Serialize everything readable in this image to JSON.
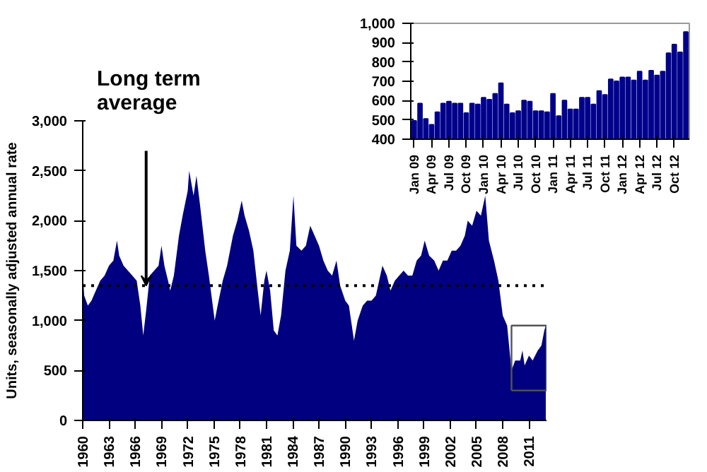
{
  "chart_data": [
    {
      "type": "area",
      "ylabel": "Units, seasonally adjusted annual rate",
      "x": [
        "1960-01",
        "1960-03",
        "1960-08",
        "1961-01",
        "1961-07",
        "1962-01",
        "1962-07",
        "1963-01",
        "1963-07",
        "1963-12",
        "1964-03",
        "1964-09",
        "1965-03",
        "1965-09",
        "1966-03",
        "1966-08",
        "1966-12",
        "1967-04",
        "1967-09",
        "1968-03",
        "1968-09",
        "1969-01",
        "1969-05",
        "1969-10",
        "1970-01",
        "1970-06",
        "1971-01",
        "1971-06",
        "1972-01",
        "1972-03",
        "1972-09",
        "1973-01",
        "1973-06",
        "1974-01",
        "1974-06",
        "1975-02",
        "1975-06",
        "1976-01",
        "1976-07",
        "1977-03",
        "1977-09",
        "1978-03",
        "1978-07",
        "1979-01",
        "1979-07",
        "1980-01",
        "1980-05",
        "1980-10",
        "1981-01",
        "1981-06",
        "1981-11",
        "1982-04",
        "1982-09",
        "1983-03",
        "1983-09",
        "1984-02",
        "1984-06",
        "1985-01",
        "1985-07",
        "1986-01",
        "1986-07",
        "1987-01",
        "1987-07",
        "1988-01",
        "1988-07",
        "1989-01",
        "1989-06",
        "1990-01",
        "1990-06",
        "1991-01",
        "1991-06",
        "1992-01",
        "1992-07",
        "1993-01",
        "1993-07",
        "1994-04",
        "1994-10",
        "1995-03",
        "1995-09",
        "1996-03",
        "1996-09",
        "1997-03",
        "1997-09",
        "1998-03",
        "1998-09",
        "1999-02",
        "1999-08",
        "2000-03",
        "2000-09",
        "2001-03",
        "2001-09",
        "2002-03",
        "2002-09",
        "2003-03",
        "2003-09",
        "2004-01",
        "2004-07",
        "2005-01",
        "2005-07",
        "2006-01",
        "2006-06",
        "2007-01",
        "2007-07",
        "2008-01",
        "2008-07",
        "2009-01",
        "2009-06",
        "2010-01",
        "2010-04",
        "2010-07",
        "2011-01",
        "2011-06",
        "2012-01",
        "2012-06",
        "2012-10",
        "2012-12"
      ],
      "series": [
        {
          "color": "#000080",
          "values": [
            1500,
            1250,
            1150,
            1200,
            1300,
            1400,
            1450,
            1550,
            1600,
            1800,
            1650,
            1550,
            1500,
            1450,
            1400,
            1150,
            850,
            1100,
            1450,
            1500,
            1550,
            1750,
            1550,
            1400,
            1300,
            1450,
            1850,
            2050,
            2300,
            2500,
            2250,
            2450,
            2150,
            1700,
            1450,
            1000,
            1150,
            1400,
            1550,
            1850,
            2000,
            2200,
            2050,
            1900,
            1700,
            1300,
            1050,
            1400,
            1500,
            1300,
            900,
            850,
            1050,
            1500,
            1700,
            2250,
            1750,
            1700,
            1750,
            1950,
            1850,
            1750,
            1600,
            1500,
            1450,
            1600,
            1350,
            1200,
            1150,
            800,
            1000,
            1150,
            1200,
            1200,
            1250,
            1550,
            1450,
            1300,
            1400,
            1450,
            1500,
            1450,
            1450,
            1600,
            1650,
            1800,
            1650,
            1600,
            1500,
            1600,
            1600,
            1700,
            1700,
            1750,
            1850,
            2000,
            1950,
            2100,
            2050,
            2250,
            1800,
            1600,
            1400,
            1050,
            950,
            500,
            600,
            600,
            700,
            550,
            650,
            600,
            700,
            750,
            900,
            950
          ]
        }
      ],
      "xlim": [
        "1960-01",
        "2013-01"
      ],
      "xticks": [
        {
          "value": "1960",
          "label": "1960"
        },
        {
          "value": "1963",
          "label": "1963"
        },
        {
          "value": "1966",
          "label": "1966"
        },
        {
          "value": "1969",
          "label": "1969"
        },
        {
          "value": "1972",
          "label": "1972"
        },
        {
          "value": "1975",
          "label": "1975"
        },
        {
          "value": "1978",
          "label": "1978"
        },
        {
          "value": "1981",
          "label": "1981"
        },
        {
          "value": "1984",
          "label": "1984"
        },
        {
          "value": "1987",
          "label": "1987"
        },
        {
          "value": "1990",
          "label": "1990"
        },
        {
          "value": "1993",
          "label": "1993"
        },
        {
          "value": "1996",
          "label": "1996"
        },
        {
          "value": "1999",
          "label": "1999"
        },
        {
          "value": "2002",
          "label": "2002"
        },
        {
          "value": "2005",
          "label": "2005"
        },
        {
          "value": "2008",
          "label": "2008"
        },
        {
          "value": "2011",
          "label": "2011"
        }
      ],
      "ylim": [
        0,
        3000
      ],
      "yticks": [
        0,
        500,
        {
          "value": 1000,
          "label": "1,000"
        },
        {
          "value": 1500,
          "label": "1,500"
        },
        {
          "value": 2000,
          "label": "2,000"
        },
        {
          "value": 2500,
          "label": "2,500"
        },
        {
          "value": 3000,
          "label": "3,000"
        }
      ],
      "ref_lines": [
        {
          "axis": "y",
          "value": 1350,
          "line_style": "dotted",
          "color": "#000000"
        }
      ],
      "annotations": [
        "Long term average"
      ],
      "grid": false
    },
    {
      "type": "bar",
      "categories": [
        "Jan 09",
        null,
        null,
        "Apr 09",
        null,
        null,
        "Jul 09",
        null,
        null,
        "Oct 09",
        null,
        null,
        "Jan 10",
        null,
        null,
        "Apr 10",
        null,
        null,
        "Jul 10",
        null,
        null,
        "Oct 10",
        null,
        null,
        "Jan 11",
        null,
        null,
        "Apr 11",
        null,
        null,
        "Jul 11",
        null,
        null,
        "Oct 11",
        null,
        null,
        "Jan 12",
        null,
        null,
        "Apr 12",
        null,
        null,
        "Jul 12",
        null,
        null,
        "Oct 12",
        null,
        null
      ],
      "series": [
        {
          "color": "#00008b",
          "values": [
            495,
            585,
            505,
            475,
            540,
            585,
            595,
            585,
            585,
            535,
            585,
            580,
            615,
            605,
            635,
            690,
            580,
            535,
            545,
            600,
            595,
            545,
            545,
            540,
            635,
            520,
            600,
            555,
            555,
            615,
            615,
            580,
            650,
            630,
            710,
            700,
            720,
            720,
            705,
            750,
            705,
            755,
            730,
            750,
            845,
            890,
            850,
            955
          ]
        }
      ],
      "ylim": [
        400,
        1000
      ],
      "yticks": [
        400,
        500,
        600,
        700,
        800,
        900,
        {
          "value": 1000,
          "label": "1,000"
        }
      ],
      "grid": false
    }
  ]
}
